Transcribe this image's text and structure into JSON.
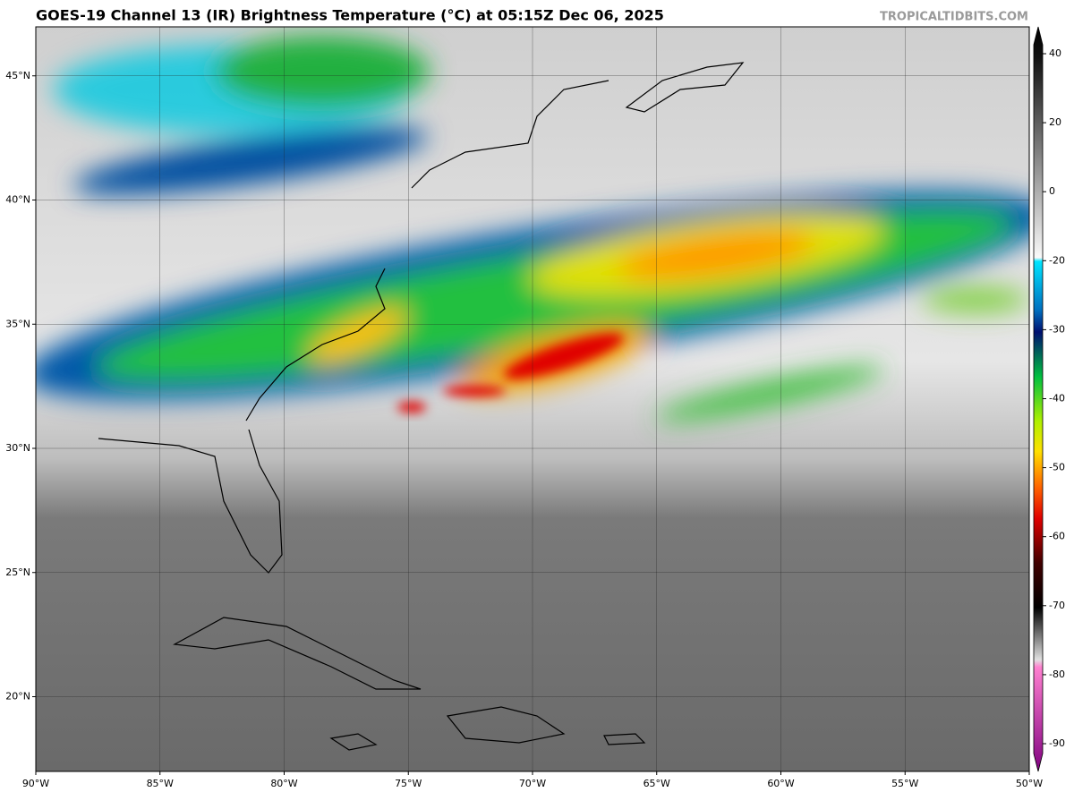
{
  "header": {
    "title": "GOES-19 Channel 13 (IR) Brightness Temperature (°C) at 05:15Z Dec 06, 2025",
    "source": "TROPICALTIDBITS.COM"
  },
  "map": {
    "lon_ticks": [
      {
        "value": -90,
        "label": "90°W"
      },
      {
        "value": -85,
        "label": "85°W"
      },
      {
        "value": -80,
        "label": "80°W"
      },
      {
        "value": -75,
        "label": "75°W"
      },
      {
        "value": -70,
        "label": "70°W"
      },
      {
        "value": -65,
        "label": "65°W"
      },
      {
        "value": -60,
        "label": "60°W"
      },
      {
        "value": -55,
        "label": "55°W"
      },
      {
        "value": -50,
        "label": "50°W"
      }
    ],
    "lat_ticks": [
      {
        "value": 20,
        "label": "20°N"
      },
      {
        "value": 25,
        "label": "25°N"
      },
      {
        "value": 30,
        "label": "30°N"
      },
      {
        "value": 35,
        "label": "35°N"
      },
      {
        "value": 40,
        "label": "40°N"
      },
      {
        "value": 45,
        "label": "45°N"
      }
    ]
  },
  "colorbar": {
    "ticks": [
      40,
      20,
      0,
      -20,
      -30,
      -40,
      -50,
      -60,
      -70,
      -80,
      -90
    ]
  }
}
